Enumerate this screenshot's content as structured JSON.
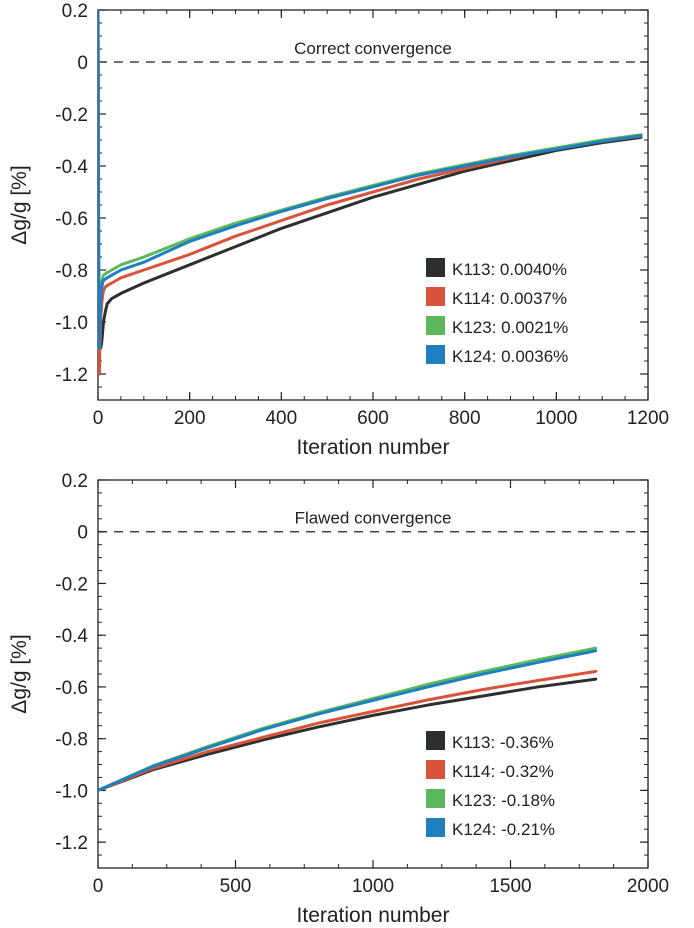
{
  "chart_data": [
    {
      "type": "line",
      "xlabel": "Iteration number",
      "ylabel": "Δg/g [%]",
      "annotation": "Correct convergence",
      "xlim": [
        0,
        1200
      ],
      "ylim": [
        -1.3,
        0.2
      ],
      "xticks": [
        0,
        200,
        400,
        600,
        800,
        1000,
        1200
      ],
      "yticks": [
        0.2,
        0,
        -0.2,
        -0.4,
        -0.6,
        -0.8,
        -1.0,
        -1.2
      ],
      "ytick_labels": [
        "0.2",
        "0",
        "-0.2",
        "-0.4",
        "-0.6",
        "-0.8",
        "-1.0",
        "-1.2"
      ],
      "reference_line": {
        "y": 0,
        "style": "dashed"
      },
      "legend_position": "bottom-right",
      "grid": false,
      "series": [
        {
          "name": "K113: 0.0040%",
          "color": "#2b2f2d",
          "x": [
            0,
            1,
            2,
            3,
            4,
            6,
            8,
            10,
            12,
            16,
            20,
            30,
            50,
            100,
            200,
            300,
            400,
            500,
            600,
            700,
            800,
            900,
            1000,
            1100,
            1185
          ],
          "y": [
            0.2,
            -0.5,
            -1.1,
            -1.15,
            -1.05,
            -1.1,
            -1.08,
            -1.04,
            -1.0,
            -0.96,
            -0.93,
            -0.91,
            -0.89,
            -0.85,
            -0.78,
            -0.71,
            -0.64,
            -0.58,
            -0.52,
            -0.47,
            -0.42,
            -0.38,
            -0.34,
            -0.31,
            -0.29
          ]
        },
        {
          "name": "K114: 0.0037%",
          "color": "#d9533b",
          "x": [
            0,
            1,
            2,
            3,
            4,
            6,
            8,
            10,
            12,
            16,
            20,
            30,
            50,
            100,
            200,
            300,
            400,
            500,
            600,
            700,
            800,
            900,
            1000,
            1100,
            1185
          ],
          "y": [
            0.2,
            -0.6,
            -1.15,
            -1.2,
            -1.1,
            -0.98,
            -0.93,
            -0.9,
            -0.88,
            -0.865,
            -0.86,
            -0.85,
            -0.83,
            -0.8,
            -0.74,
            -0.67,
            -0.61,
            -0.55,
            -0.5,
            -0.45,
            -0.41,
            -0.37,
            -0.33,
            -0.305,
            -0.285
          ]
        },
        {
          "name": "K123: 0.0021%",
          "color": "#5cb85c",
          "x": [
            0,
            1,
            2,
            3,
            4,
            6,
            8,
            10,
            12,
            16,
            20,
            30,
            50,
            100,
            200,
            300,
            400,
            500,
            600,
            700,
            800,
            900,
            1000,
            1100,
            1185
          ],
          "y": [
            0.2,
            -0.4,
            -1.0,
            -1.05,
            -0.95,
            -0.88,
            -0.85,
            -0.83,
            -0.82,
            -0.815,
            -0.81,
            -0.8,
            -0.78,
            -0.75,
            -0.68,
            -0.62,
            -0.57,
            -0.52,
            -0.475,
            -0.43,
            -0.395,
            -0.36,
            -0.33,
            -0.3,
            -0.28
          ]
        },
        {
          "name": "K124: 0.0036%",
          "color": "#1f7fbf",
          "x": [
            0,
            1,
            2,
            3,
            4,
            6,
            8,
            10,
            12,
            16,
            20,
            30,
            50,
            100,
            200,
            300,
            400,
            500,
            600,
            700,
            800,
            900,
            1000,
            1100,
            1185
          ],
          "y": [
            0.2,
            -0.45,
            -1.05,
            -1.1,
            -1.0,
            -0.91,
            -0.87,
            -0.85,
            -0.84,
            -0.835,
            -0.83,
            -0.82,
            -0.8,
            -0.77,
            -0.69,
            -0.63,
            -0.575,
            -0.525,
            -0.48,
            -0.435,
            -0.4,
            -0.365,
            -0.335,
            -0.305,
            -0.283
          ]
        }
      ]
    },
    {
      "type": "line",
      "xlabel": "Iteration number",
      "ylabel": "Δg/g [%]",
      "annotation": "Flawed convergence",
      "xlim": [
        0,
        2000
      ],
      "ylim": [
        -1.3,
        0.2
      ],
      "xticks": [
        0,
        500,
        1000,
        1500,
        2000
      ],
      "yticks": [
        0.2,
        0,
        -0.2,
        -0.4,
        -0.6,
        -0.8,
        -1.0,
        -1.2
      ],
      "ytick_labels": [
        "0.2",
        "0",
        "-0.2",
        "-0.4",
        "-0.6",
        "-0.8",
        "-1.0",
        "-1.2"
      ],
      "reference_line": {
        "y": 0,
        "style": "dashed"
      },
      "legend_position": "bottom-right",
      "grid": false,
      "series": [
        {
          "name": "K113: -0.36%",
          "color": "#2b2f2d",
          "x": [
            0,
            200,
            400,
            600,
            800,
            1000,
            1200,
            1400,
            1600,
            1810
          ],
          "y": [
            -1.0,
            -0.92,
            -0.86,
            -0.805,
            -0.755,
            -0.71,
            -0.67,
            -0.635,
            -0.6,
            -0.57
          ]
        },
        {
          "name": "K114: -0.32%",
          "color": "#d9533b",
          "x": [
            0,
            200,
            400,
            600,
            800,
            1000,
            1200,
            1400,
            1600,
            1810
          ],
          "y": [
            -1.0,
            -0.915,
            -0.85,
            -0.795,
            -0.74,
            -0.695,
            -0.65,
            -0.61,
            -0.575,
            -0.54
          ]
        },
        {
          "name": "K123: -0.18%",
          "color": "#5cb85c",
          "x": [
            0,
            200,
            400,
            600,
            800,
            1000,
            1200,
            1400,
            1600,
            1810
          ],
          "y": [
            -1.0,
            -0.905,
            -0.83,
            -0.76,
            -0.7,
            -0.645,
            -0.59,
            -0.54,
            -0.495,
            -0.45
          ]
        },
        {
          "name": "K124: -0.21%",
          "color": "#1f7fbf",
          "x": [
            0,
            200,
            400,
            600,
            800,
            1000,
            1200,
            1400,
            1600,
            1810
          ],
          "y": [
            -1.0,
            -0.907,
            -0.835,
            -0.765,
            -0.705,
            -0.652,
            -0.6,
            -0.55,
            -0.505,
            -0.46
          ]
        }
      ]
    }
  ]
}
